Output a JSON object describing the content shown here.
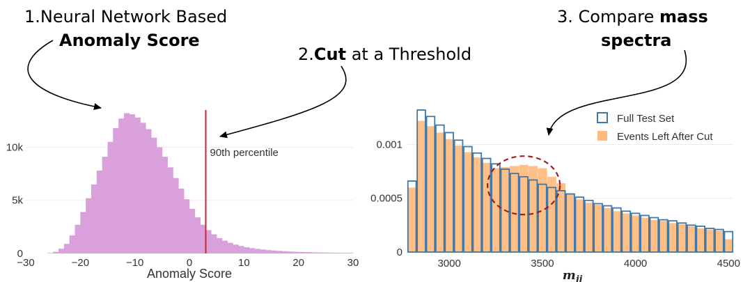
{
  "steps": {
    "step1": {
      "line1": "1.Neural Network Based",
      "line2": "Anomaly Score"
    },
    "step2": {
      "prefix": "2.",
      "bold": "Cut",
      "suffix": " at a Threshold"
    },
    "step3": {
      "prefix": "3. Compare ",
      "bold1": "mass",
      "bold2": "spectra"
    }
  },
  "colors": {
    "anomaly_hist": "#d9a0dc",
    "threshold_line": "#c62828",
    "full_test_set": "#3f77a8",
    "events_left": "#ffbb7d",
    "ellipse": "#a01c1c",
    "arrow": "#000000"
  },
  "chart_data": [
    {
      "type": "bar",
      "title": "",
      "xlabel": "Anomaly Score",
      "ylabel": "",
      "xlim": [
        -30,
        30
      ],
      "ylim": [
        0,
        13500
      ],
      "x_ticks": [
        -30,
        -20,
        -10,
        0,
        10,
        20,
        30
      ],
      "x_tick_labels": [
        "−30",
        "−20",
        "−10",
        "0",
        "10",
        "20",
        "30"
      ],
      "y_ticks": [
        0,
        5000,
        10000
      ],
      "y_tick_labels": [
        "0",
        "5k",
        "10k"
      ],
      "bin_width": 1,
      "bin_start": -30,
      "values": [
        0,
        0,
        0,
        0,
        50,
        150,
        450,
        900,
        1700,
        2700,
        3900,
        5200,
        6500,
        7800,
        9100,
        10500,
        11800,
        12700,
        13200,
        13100,
        12800,
        12300,
        11700,
        10900,
        10000,
        9100,
        8100,
        7100,
        6100,
        5100,
        4200,
        3400,
        2700,
        2200,
        1800,
        1450,
        1200,
        1000,
        830,
        700,
        590,
        500,
        430,
        370,
        320,
        280,
        240,
        210,
        180,
        160,
        140,
        125,
        110,
        100,
        90,
        80,
        72,
        65,
        58,
        52
      ],
      "threshold": {
        "x": 3,
        "label": "90th percentile"
      },
      "grid": true
    },
    {
      "type": "bar",
      "title": "",
      "xlabel": "mjj",
      "xlabel_parts": {
        "base": "m",
        "sub": "jj"
      },
      "ylabel": "",
      "xlim": [
        2775,
        4525
      ],
      "ylim": [
        0,
        0.00132
      ],
      "x_ticks": [
        3000,
        3500,
        4000,
        4500
      ],
      "y_ticks": [
        0,
        0.0005,
        0.001
      ],
      "y_tick_labels": [
        "0",
        "0.0005",
        "0.001"
      ],
      "bin_edges": [
        2775,
        2825,
        2875,
        2925,
        2975,
        3025,
        3075,
        3125,
        3175,
        3225,
        3275,
        3325,
        3375,
        3425,
        3475,
        3525,
        3575,
        3625,
        3675,
        3725,
        3775,
        3825,
        3875,
        3925,
        3975,
        4025,
        4075,
        4125,
        4175,
        4225,
        4275,
        4325,
        4375,
        4425,
        4475,
        4525
      ],
      "series": [
        {
          "name": "Full Test Set",
          "style": "step",
          "values": [
            0.00066,
            0.00132,
            0.00126,
            0.00118,
            0.00111,
            0.00104,
            0.00098,
            0.00092,
            0.00087,
            0.00082,
            0.00077,
            0.00073,
            0.0007,
            0.00067,
            0.00063,
            0.0006,
            0.00057,
            0.00054,
            0.00051,
            0.00048,
            0.00045,
            0.00043,
            0.00041,
            0.00038,
            0.00036,
            0.00034,
            0.00032,
            0.0003,
            0.00029,
            0.00027,
            0.00025,
            0.00024,
            0.00022,
            0.00021,
            0.00019
          ]
        },
        {
          "name": "Events Left After Cut",
          "style": "filled",
          "values": [
            0.0006,
            0.00122,
            0.00117,
            0.00111,
            0.00105,
            0.00099,
            0.00093,
            0.00088,
            0.00083,
            0.00078,
            0.00079,
            0.0008,
            0.00081,
            0.0008,
            0.00078,
            0.0007,
            0.00064,
            0.00054,
            0.00049,
            0.00046,
            0.00044,
            0.00041,
            0.00038,
            0.00036,
            0.00034,
            0.00032,
            0.0003,
            0.00029,
            0.00027,
            0.00026,
            0.00024,
            0.00022,
            0.00021,
            0.0002,
            0.00012
          ]
        }
      ],
      "legend": "top-right",
      "highlight": {
        "shape": "dashed-ellipse",
        "center_x": 3400,
        "center_y": 0.00062
      },
      "grid": true
    }
  ]
}
